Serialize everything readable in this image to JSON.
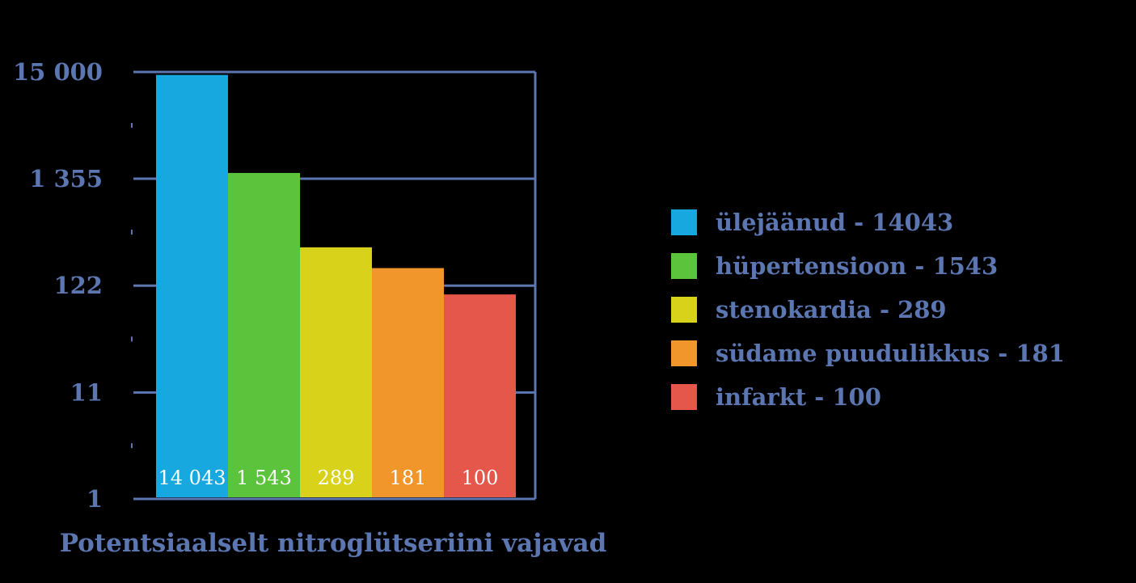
{
  "chart_data": {
    "type": "bar",
    "categories": [
      "ülejäänud",
      "hüpertensioon",
      "stenokardia",
      "südame puudulikkus",
      "infarkt"
    ],
    "values": [
      14043,
      1543,
      289,
      181,
      100
    ],
    "value_labels": [
      "14 043",
      "1 543",
      "289",
      "181",
      "100"
    ],
    "colors": [
      "#18a8e0",
      "#5cc43c",
      "#d8d21a",
      "#f0962a",
      "#e4574a"
    ],
    "yscale": "log",
    "ylim": [
      1,
      15000
    ],
    "yticks": [
      1,
      11,
      122,
      1355,
      15000
    ],
    "ytick_labels": [
      "1",
      "11",
      "122",
      "1 355",
      "15 000"
    ],
    "xlabel": "Potentsiaalselt nitroglütseriini vajavad",
    "ylabel": "",
    "grid": true,
    "legend_position": "right",
    "legend": [
      "ülejäänud - 14043",
      "hüpertensioon - 1543",
      "stenokardia - 289",
      "südame puudulikkus - 181",
      "infarkt - 100"
    ],
    "axis_color": "#5b76b0",
    "data_label_color": "#ffffff"
  }
}
